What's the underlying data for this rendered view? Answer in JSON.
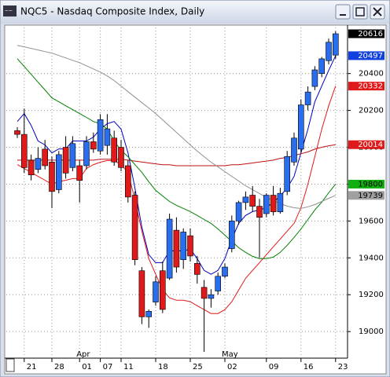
{
  "chart_data": {
    "type": "candlestick",
    "title": "NQC5 - Nasdaq Composite Index, Daily",
    "categories": [
      null,
      "21",
      null,
      null,
      null,
      "28",
      null,
      null,
      null,
      "01",
      null,
      null,
      "07",
      null,
      null,
      "11",
      null,
      null,
      null,
      null,
      "18",
      null,
      null,
      null,
      null,
      "25",
      null,
      null,
      null,
      null,
      "02",
      null,
      null,
      null,
      null,
      null,
      "09",
      null,
      null,
      null,
      null,
      "16",
      null,
      null,
      null,
      null,
      "23"
    ],
    "months": [
      {
        "label": "Apr",
        "index": 9
      },
      {
        "label": "May",
        "index": 30
      }
    ],
    "open": [
      20090,
      20070,
      19930,
      19880,
      19990,
      19920,
      19770,
      20000,
      19890,
      19900,
      19900,
      20030,
      19980,
      20010,
      20050,
      20000,
      19900,
      19740,
      19330,
      19080,
      19160,
      19330,
      19290,
      19550,
      19390,
      19520,
      19370,
      19240,
      19180,
      19220,
      19300,
      19450,
      19600,
      19700,
      19740,
      19680,
      19640,
      19740,
      19650,
      19760,
      19920,
      19990,
      20230,
      20330,
      20400,
      20470,
      20500
    ],
    "high": [
      20110,
      20210,
      19960,
      20000,
      20040,
      19950,
      19980,
      20060,
      20060,
      19930,
      20060,
      20080,
      20180,
      20180,
      20090,
      20040,
      19930,
      19760,
      19350,
      19120,
      19300,
      19380,
      19640,
      19620,
      19560,
      19560,
      19410,
      19280,
      19230,
      19320,
      19370,
      19630,
      19710,
      19760,
      19790,
      19720,
      19750,
      19790,
      19780,
      19980,
      20080,
      20260,
      20330,
      20440,
      20490,
      20590,
      20630
    ],
    "low": [
      20050,
      19860,
      19820,
      19860,
      19880,
      19670,
      19750,
      19830,
      19870,
      19700,
      19880,
      19970,
      19960,
      19960,
      19900,
      19870,
      19700,
      19360,
      19040,
      19020,
      19140,
      19100,
      19280,
      19320,
      19340,
      19380,
      19260,
      18890,
      19130,
      19200,
      19290,
      19430,
      19580,
      19660,
      19650,
      19400,
      19620,
      19630,
      19640,
      19740,
      19900,
      19970,
      20200,
      20310,
      20380,
      20450,
      20480
    ],
    "close": [
      20070,
      19890,
      19850,
      19940,
      19900,
      19760,
      19960,
      19860,
      20020,
      19820,
      20030,
      19990,
      20150,
      20100,
      19920,
      19890,
      19730,
      19390,
      19080,
      19110,
      19270,
      19120,
      19610,
      19350,
      19540,
      19410,
      19310,
      19180,
      19200,
      19300,
      19350,
      19600,
      19700,
      19730,
      19680,
      19620,
      19740,
      19650,
      19750,
      19950,
      20050,
      20230,
      20300,
      20420,
      20480,
      20570,
      20616
    ],
    "up_color": "#2a6ef0",
    "down_color": "#e01a1a",
    "lines": [
      {
        "color": "#0000c0",
        "values": [
          20140,
          20183,
          20119,
          20034,
          20013,
          19970,
          19991,
          19991,
          20034,
          20034,
          20034,
          20055,
          20098,
          20128,
          20140,
          20098,
          19970,
          19779,
          19566,
          19417,
          19374,
          19374,
          19438,
          19438,
          19438,
          19447,
          19396,
          19332,
          19311,
          19332,
          19396,
          19502,
          19587,
          19630,
          19651,
          19660,
          19672,
          19702,
          19736,
          19779,
          19842,
          19970,
          20098,
          20247,
          20332,
          20417,
          20497
        ]
      },
      {
        "color": "#e01a1a",
        "values": [
          19906,
          19885,
          19864,
          19842,
          19821,
          19800,
          19813,
          19821,
          19830,
          19830,
          19885,
          19906,
          19919,
          19928,
          19928,
          19906,
          19864,
          19715,
          19545,
          19396,
          19311,
          19226,
          19183,
          19170,
          19170,
          19162,
          19140,
          19119,
          19098,
          19098,
          19119,
          19162,
          19226,
          19289,
          19332,
          19374,
          19417,
          19460,
          19502,
          19545,
          19587,
          19672,
          19800,
          19949,
          20098,
          20225,
          20332
        ]
      },
      {
        "color": "#c01010",
        "values": [
          19930,
          19930,
          19930,
          19930,
          19930,
          19930,
          19930,
          19930,
          19930,
          19930,
          19930,
          19930,
          19935,
          19935,
          19935,
          19935,
          19930,
          19925,
          19920,
          19915,
          19910,
          19905,
          19905,
          19900,
          19900,
          19900,
          19900,
          19900,
          19900,
          19900,
          19900,
          19905,
          19905,
          19910,
          19915,
          19920,
          19925,
          19930,
          19940,
          19945,
          19955,
          19965,
          19975,
          19990,
          20000,
          20008,
          20014
        ]
      },
      {
        "color": "#008000",
        "values": [
          20481,
          20438,
          20396,
          20353,
          20311,
          20268,
          20247,
          20225,
          20204,
          20183,
          20162,
          20140,
          20128,
          20098,
          20034,
          19983,
          19949,
          19906,
          19864,
          19813,
          19766,
          19736,
          19706,
          19685,
          19668,
          19651,
          19630,
          19608,
          19587,
          19557,
          19523,
          19489,
          19455,
          19430,
          19408,
          19396,
          19396,
          19404,
          19430,
          19468,
          19511,
          19557,
          19608,
          19660,
          19702,
          19753,
          19800
        ]
      },
      {
        "color": "#909090",
        "values": [
          20553,
          20545,
          20536,
          20528,
          20519,
          20511,
          20498,
          20485,
          20472,
          20459,
          20442,
          20425,
          20408,
          20387,
          20362,
          20332,
          20302,
          20272,
          20242,
          20213,
          20183,
          20149,
          20115,
          20081,
          20047,
          20013,
          19979,
          19949,
          19919,
          19894,
          19868,
          19842,
          19817,
          19791,
          19770,
          19749,
          19728,
          19711,
          19694,
          19681,
          19672,
          19668,
          19677,
          19689,
          19706,
          19723,
          19739
        ]
      }
    ],
    "price_labels": [
      {
        "value": 20616,
        "color": "#000000"
      },
      {
        "value": 20497,
        "color": "#1040e0"
      },
      {
        "value": 20332,
        "color": "#e01a1a"
      },
      {
        "value": 20014,
        "color": "#e01a1a"
      },
      {
        "value": 19800,
        "color": "#10b010"
      },
      {
        "value": 19739,
        "color": "#a0a0a0"
      }
    ],
    "ylim": [
      18860,
      20650
    ],
    "yticks": [
      19000,
      19200,
      19400,
      19600,
      19800,
      20000,
      20200,
      20400
    ],
    "grid": true
  }
}
